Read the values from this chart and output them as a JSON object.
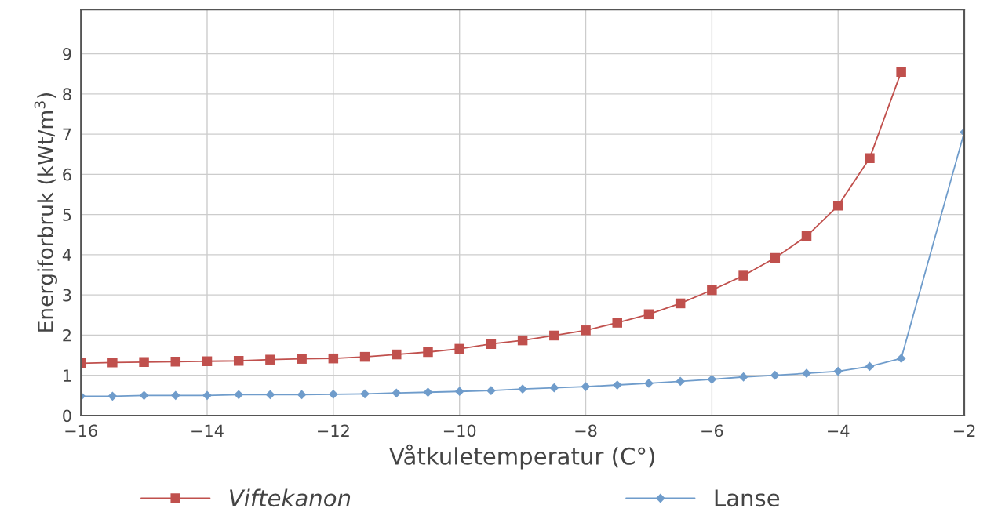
{
  "chart_data": {
    "type": "line",
    "xlabel": "Våtkuletemperatur (C°)",
    "ylabel": "Energiforbruk (kWt/m$^{3}$)",
    "xlim": [
      -16,
      -2
    ],
    "xticks": [
      {
        "value": -16,
        "label": "−16"
      },
      {
        "value": -14,
        "label": "−14"
      },
      {
        "value": -12,
        "label": "−12"
      },
      {
        "value": -10,
        "label": "−10"
      },
      {
        "value": -8,
        "label": "−8"
      },
      {
        "value": -6,
        "label": "−6"
      },
      {
        "value": -4,
        "label": "−4"
      },
      {
        "value": -2,
        "label": "−2"
      }
    ],
    "ylim": [
      0,
      10.1
    ],
    "yticks": [
      0,
      1,
      2,
      3,
      4,
      5,
      6,
      7,
      8,
      9
    ],
    "grid": true,
    "legend": "bottom",
    "series": [
      {
        "name": "Viftekanon",
        "color": "#c0504d",
        "marker": "square",
        "x": [
          -16,
          -15.5,
          -15,
          -14.5,
          -14,
          -13.5,
          -13,
          -12.5,
          -12,
          -11.5,
          -11,
          -10.5,
          -10,
          -9.5,
          -9,
          -8.5,
          -8,
          -7.5,
          -7,
          -6.5,
          -6,
          -5.5,
          -5,
          -4.5,
          -4,
          -3.5,
          -3
        ],
        "values": [
          1.3,
          1.32,
          1.33,
          1.34,
          1.35,
          1.36,
          1.39,
          1.41,
          1.42,
          1.46,
          1.52,
          1.58,
          1.66,
          1.78,
          1.87,
          1.99,
          2.12,
          2.31,
          2.52,
          2.79,
          3.12,
          3.48,
          3.92,
          4.46,
          5.22,
          6.4,
          8.55
        ]
      },
      {
        "name": "Lanse",
        "color": "#6f9ccb",
        "marker": "diamond",
        "x": [
          -16,
          -15.5,
          -15,
          -14.5,
          -14,
          -13.5,
          -13,
          -12.5,
          -12,
          -11.5,
          -11,
          -10.5,
          -10,
          -9.5,
          -9,
          -8.5,
          -8,
          -7.5,
          -7,
          -6.5,
          -6,
          -5.5,
          -5,
          -4.5,
          -4,
          -3.5,
          -3,
          -2
        ],
        "values": [
          0.48,
          0.48,
          0.5,
          0.5,
          0.5,
          0.52,
          0.52,
          0.52,
          0.53,
          0.54,
          0.56,
          0.58,
          0.6,
          0.62,
          0.66,
          0.69,
          0.72,
          0.76,
          0.8,
          0.85,
          0.9,
          0.96,
          1.0,
          1.05,
          1.1,
          1.22,
          1.42,
          7.05
        ]
      }
    ]
  }
}
